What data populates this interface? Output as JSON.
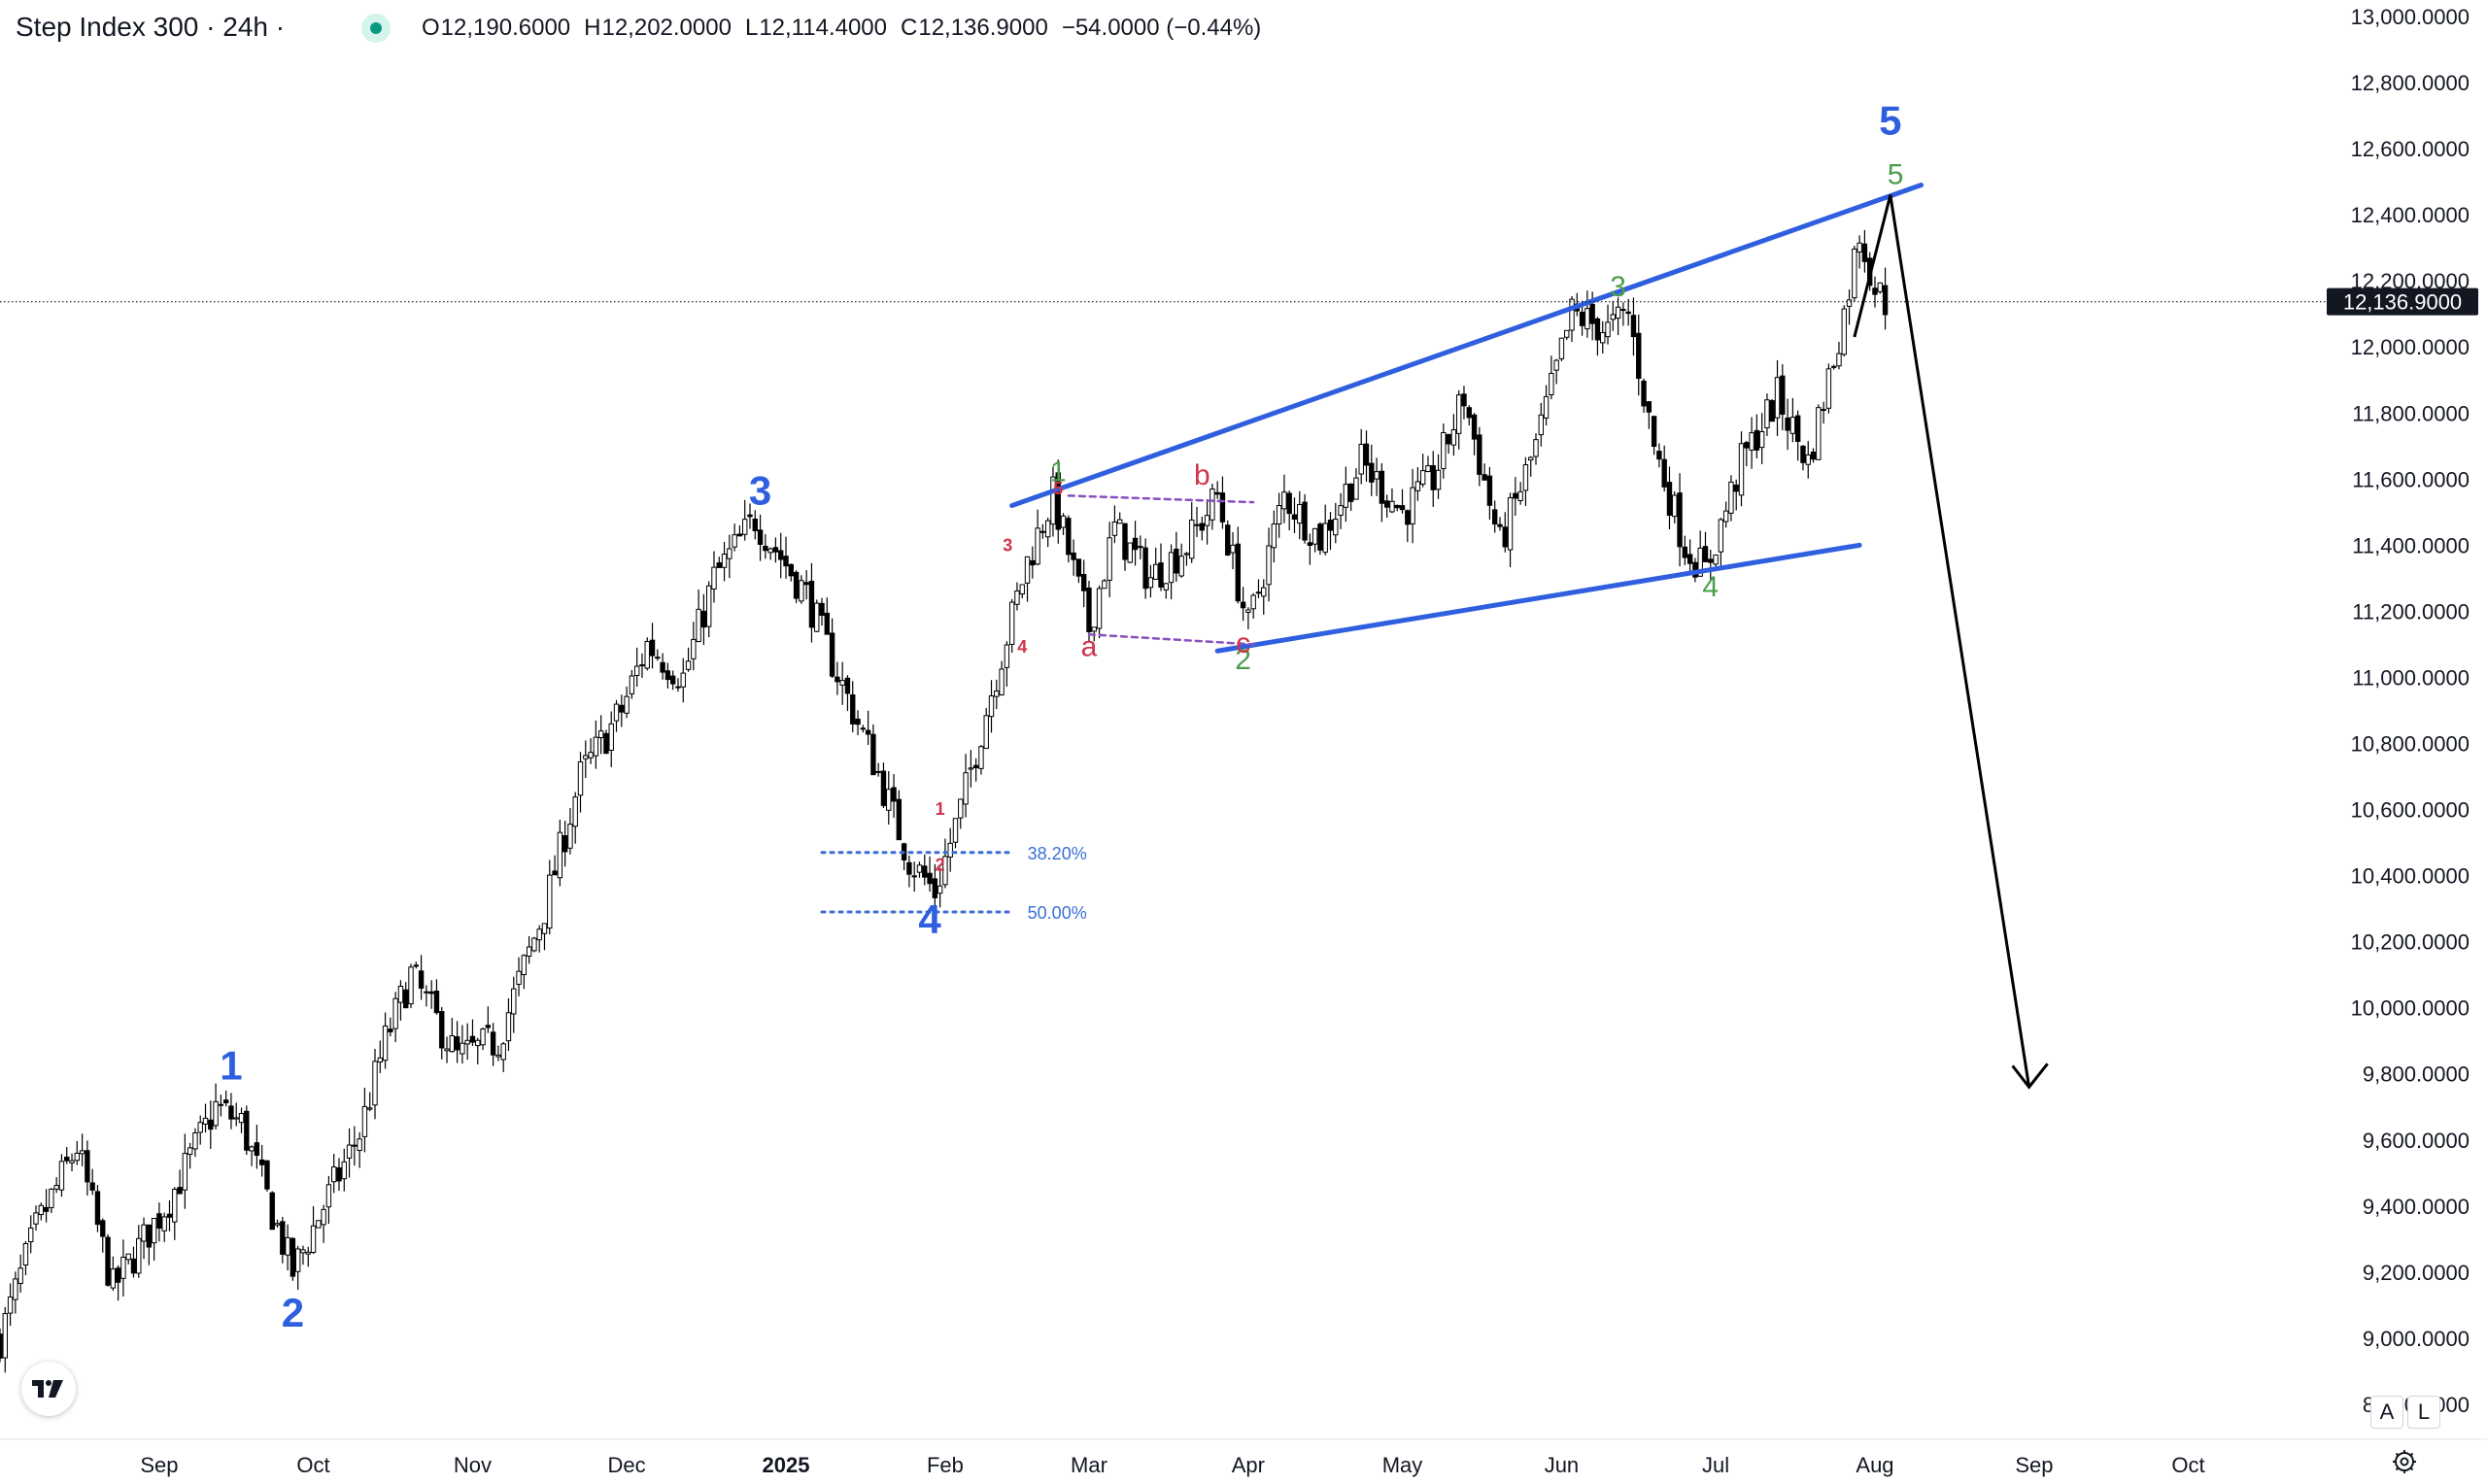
{
  "header": {
    "title": "Step Index 300 · 24h ·",
    "open": {
      "k": "O",
      "v": "12,190.6000"
    },
    "high": {
      "k": "H",
      "v": "12,202.0000"
    },
    "low": {
      "k": "L",
      "v": "12,114.4000"
    },
    "close": {
      "k": "C",
      "v": "12,136.9000"
    },
    "change": "−54.0000 (−0.44%)"
  },
  "buttons": {
    "auto": "A",
    "log": "L",
    "logo": "TV"
  },
  "icons": {
    "logo": "tradingview-logo-icon",
    "settings": "gear-icon",
    "status": "market-open-dot-icon"
  },
  "colors": {
    "wave_blue": "#2f5fdf",
    "wave_green": "#4a9d4a",
    "wave_red": "#d0334a",
    "fib": "#3b6fd6",
    "channel": "#8a4fbf",
    "candle": "#000000",
    "price_tag": "#131722"
  },
  "chart_data": {
    "type": "candlestick",
    "ylim": [
      8700,
      13050
    ],
    "y_ticks": [
      "13,000.0000",
      "12,800.0000",
      "12,600.0000",
      "12,400.0000",
      "12,200.0000",
      "12,000.0000",
      "11,800.0000",
      "11,600.0000",
      "11,400.0000",
      "11,200.0000",
      "11,000.0000",
      "10,800.0000",
      "10,600.0000",
      "10,400.0000",
      "10,200.0000",
      "10,000.0000",
      "9,800.0000",
      "9,600.0000",
      "9,400.0000",
      "9,200.0000",
      "9,000.0000",
      "8,800.0000"
    ],
    "y_tick_values": [
      13000,
      12800,
      12600,
      12400,
      12200,
      12000,
      11800,
      11600,
      11400,
      11200,
      11000,
      10800,
      10600,
      10400,
      10200,
      10000,
      9800,
      9600,
      9400,
      9200,
      9000,
      8800
    ],
    "x_start": "2024-08-01",
    "x_end": "2025-10-27",
    "x_ticks": [
      {
        "label": "Sep",
        "date": "2024-09-01",
        "bold": false
      },
      {
        "label": "Oct",
        "date": "2024-10-01",
        "bold": false
      },
      {
        "label": "Nov",
        "date": "2024-11-01",
        "bold": false
      },
      {
        "label": "Dec",
        "date": "2024-12-01",
        "bold": false
      },
      {
        "label": "2025",
        "date": "2025-01-01",
        "bold": true
      },
      {
        "label": "Feb",
        "date": "2025-02-01",
        "bold": false
      },
      {
        "label": "Mar",
        "date": "2025-03-01",
        "bold": false
      },
      {
        "label": "Apr",
        "date": "2025-04-01",
        "bold": false
      },
      {
        "label": "May",
        "date": "2025-05-01",
        "bold": false
      },
      {
        "label": "Jun",
        "date": "2025-06-01",
        "bold": false
      },
      {
        "label": "Jul",
        "date": "2025-07-01",
        "bold": false
      },
      {
        "label": "Aug",
        "date": "2025-08-01",
        "bold": false
      },
      {
        "label": "Sep",
        "date": "2025-09-01",
        "bold": false
      },
      {
        "label": "Oct",
        "date": "2025-10-01",
        "bold": false
      }
    ],
    "last_price": {
      "value": 12136.9,
      "label": "12,136.9000"
    },
    "price_path": [
      [
        "2024-08-01",
        9000
      ],
      [
        "2024-08-08",
        9330
      ],
      [
        "2024-08-16",
        9580
      ],
      [
        "2024-08-23",
        9150
      ],
      [
        "2024-09-03",
        9420
      ],
      [
        "2024-09-12",
        9700
      ],
      [
        "2024-09-17",
        9650
      ],
      [
        "2024-09-27",
        9200
      ],
      [
        "2024-10-03",
        9400
      ],
      [
        "2024-10-10",
        9620
      ],
      [
        "2024-10-15",
        9900
      ],
      [
        "2024-10-20",
        10100
      ],
      [
        "2024-10-29",
        9850
      ],
      [
        "2024-11-06",
        9900
      ],
      [
        "2024-11-15",
        10300
      ],
      [
        "2024-11-22",
        10700
      ],
      [
        "2024-11-30",
        10900
      ],
      [
        "2024-12-05",
        11100
      ],
      [
        "2024-12-12",
        11000
      ],
      [
        "2024-12-18",
        11300
      ],
      [
        "2024-12-26",
        11480
      ],
      [
        "2025-01-05",
        11250
      ],
      [
        "2025-01-10",
        11050
      ],
      [
        "2025-01-18",
        10750
      ],
      [
        "2025-01-25",
        10450
      ],
      [
        "2025-01-30",
        10350
      ],
      [
        "2025-02-04",
        10600
      ],
      [
        "2025-02-09",
        10900
      ],
      [
        "2025-02-17",
        11350
      ],
      [
        "2025-02-22",
        11550
      ],
      [
        "2025-03-01",
        11150
      ],
      [
        "2025-03-06",
        11450
      ],
      [
        "2025-03-13",
        11300
      ],
      [
        "2025-03-20",
        11400
      ],
      [
        "2025-03-26",
        11550
      ],
      [
        "2025-04-01",
        11150
      ],
      [
        "2025-04-08",
        11550
      ],
      [
        "2025-04-15",
        11420
      ],
      [
        "2025-04-23",
        11650
      ],
      [
        "2025-05-01",
        11500
      ],
      [
        "2025-05-07",
        11600
      ],
      [
        "2025-05-13",
        11850
      ],
      [
        "2025-05-20",
        11400
      ],
      [
        "2025-05-27",
        11700
      ],
      [
        "2025-06-03",
        12100
      ],
      [
        "2025-06-10",
        12050
      ],
      [
        "2025-06-14",
        12100
      ],
      [
        "2025-06-19",
        11700
      ],
      [
        "2025-06-25",
        11400
      ],
      [
        "2025-06-29",
        11320
      ],
      [
        "2025-07-06",
        11650
      ],
      [
        "2025-07-13",
        11850
      ],
      [
        "2025-07-19",
        11650
      ],
      [
        "2025-07-26",
        12100
      ],
      [
        "2025-07-29",
        12350
      ],
      [
        "2025-08-01",
        12180
      ],
      [
        "2025-08-03",
        12136
      ]
    ],
    "wave_labels": [
      {
        "text": "1",
        "color": "blue",
        "size": "large",
        "date": "2024-09-15",
        "price": 9760,
        "pos": "above"
      },
      {
        "text": "2",
        "color": "blue",
        "size": "large",
        "date": "2024-09-27",
        "price": 9140,
        "pos": "below"
      },
      {
        "text": "3",
        "color": "blue",
        "size": "large",
        "date": "2024-12-27",
        "price": 11500,
        "pos": "above"
      },
      {
        "text": "4",
        "color": "blue",
        "size": "large",
        "date": "2025-01-29",
        "price": 10330,
        "pos": "below"
      },
      {
        "text": "5",
        "color": "blue",
        "size": "large",
        "date": "2025-08-04",
        "price": 12620,
        "pos": "above"
      },
      {
        "text": "1",
        "color": "green",
        "size": "medium",
        "date": "2025-02-23",
        "price": 11570,
        "pos": "above"
      },
      {
        "text": "2",
        "color": "green",
        "size": "medium",
        "date": "2025-03-31",
        "price": 11100,
        "pos": "below"
      },
      {
        "text": "3",
        "color": "green",
        "size": "medium",
        "date": "2025-06-12",
        "price": 12130,
        "pos": "above"
      },
      {
        "text": "4",
        "color": "green",
        "size": "medium",
        "date": "2025-06-30",
        "price": 11320,
        "pos": "below"
      },
      {
        "text": "5",
        "color": "green",
        "size": "medium",
        "date": "2025-08-05",
        "price": 12470,
        "pos": "above"
      },
      {
        "text": "1",
        "color": "red",
        "size": "small",
        "date": "2025-01-31",
        "price": 10560,
        "pos": "above"
      },
      {
        "text": "2",
        "color": "red",
        "size": "small",
        "date": "2025-01-31",
        "price": 10460,
        "pos": "below"
      },
      {
        "text": "3",
        "color": "red",
        "size": "small",
        "date": "2025-02-16",
        "price": 11400,
        "pos": "left"
      },
      {
        "text": "4",
        "color": "red",
        "size": "small",
        "date": "2025-02-16",
        "price": 11120,
        "pos": "below"
      },
      {
        "text": "5",
        "color": "red",
        "size": "small",
        "date": "2025-02-23",
        "price": 11530,
        "pos": "above"
      },
      {
        "text": "a",
        "color": "red",
        "size": "medium",
        "date": "2025-03-01",
        "price": 11140,
        "pos": "below"
      },
      {
        "text": "b",
        "color": "red",
        "size": "medium",
        "date": "2025-03-23",
        "price": 11560,
        "pos": "above"
      },
      {
        "text": "c",
        "color": "red",
        "size": "medium",
        "date": "2025-03-31",
        "price": 11150,
        "pos": "below"
      }
    ],
    "trendlines": [
      {
        "name": "upper-wedge-line",
        "color": "blue",
        "style": "solid",
        "from": [
          "2025-02-14",
          11520
        ],
        "to": [
          "2025-08-10",
          12490
        ]
      },
      {
        "name": "lower-wedge-line",
        "color": "blue",
        "style": "solid",
        "from": [
          "2025-03-26",
          11080
        ],
        "to": [
          "2025-07-29",
          11400
        ]
      },
      {
        "name": "channel-top-line",
        "color": "purple",
        "style": "dashed",
        "from": [
          "2025-02-25",
          11550
        ],
        "to": [
          "2025-04-02",
          11530
        ]
      },
      {
        "name": "channel-bottom-line",
        "color": "purple",
        "style": "dashed",
        "from": [
          "2025-03-01",
          11130
        ],
        "to": [
          "2025-04-02",
          11100
        ]
      }
    ],
    "projection": {
      "points": [
        [
          "2025-07-28",
          12030
        ],
        [
          "2025-08-04",
          12460
        ],
        [
          "2025-08-31",
          9760
        ]
      ]
    },
    "fib_levels": [
      {
        "label": "38.20%",
        "price": 10470,
        "from": "2025-01-08",
        "to": "2025-02-14"
      },
      {
        "label": "50.00%",
        "price": 10290,
        "from": "2025-01-08",
        "to": "2025-02-14"
      }
    ]
  }
}
